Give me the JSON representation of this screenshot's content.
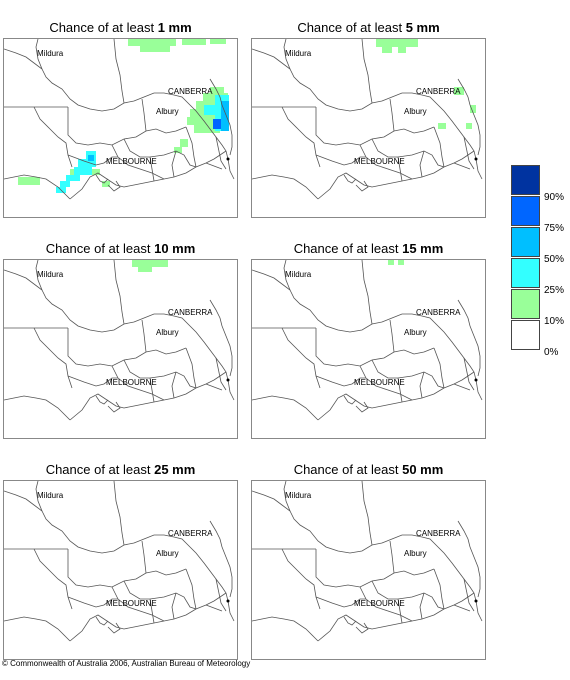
{
  "panels": [
    {
      "title_prefix": "Chance of at least ",
      "threshold": "1 mm"
    },
    {
      "title_prefix": "Chance of at least ",
      "threshold": "5 mm"
    },
    {
      "title_prefix": "Chance of at least ",
      "threshold": "10 mm"
    },
    {
      "title_prefix": "Chance of at least ",
      "threshold": "15 mm"
    },
    {
      "title_prefix": "Chance of at least ",
      "threshold": "25 mm"
    },
    {
      "title_prefix": "Chance of at least ",
      "threshold": "50 mm"
    }
  ],
  "places": {
    "mildura": "Mildura",
    "canberra": "CANBERRA",
    "albury": "Albury",
    "melbourne": "MELBOURNE"
  },
  "legend": {
    "labels": [
      "90%",
      "75%",
      "50%",
      "25%",
      "10%",
      "0%"
    ],
    "colors": [
      "#0033a0",
      "#0066ff",
      "#00bfff",
      "#33ffff",
      "#99ff99",
      "#ffffff"
    ]
  },
  "colors": {
    "green": "#99ff99",
    "cyan": "#33ffff",
    "sky": "#00bfff",
    "blue": "#0066ff",
    "border_line": "#555555"
  },
  "copyright": "© Commonwealth of Australia 2006, Australian Bureau of Meteorology"
}
